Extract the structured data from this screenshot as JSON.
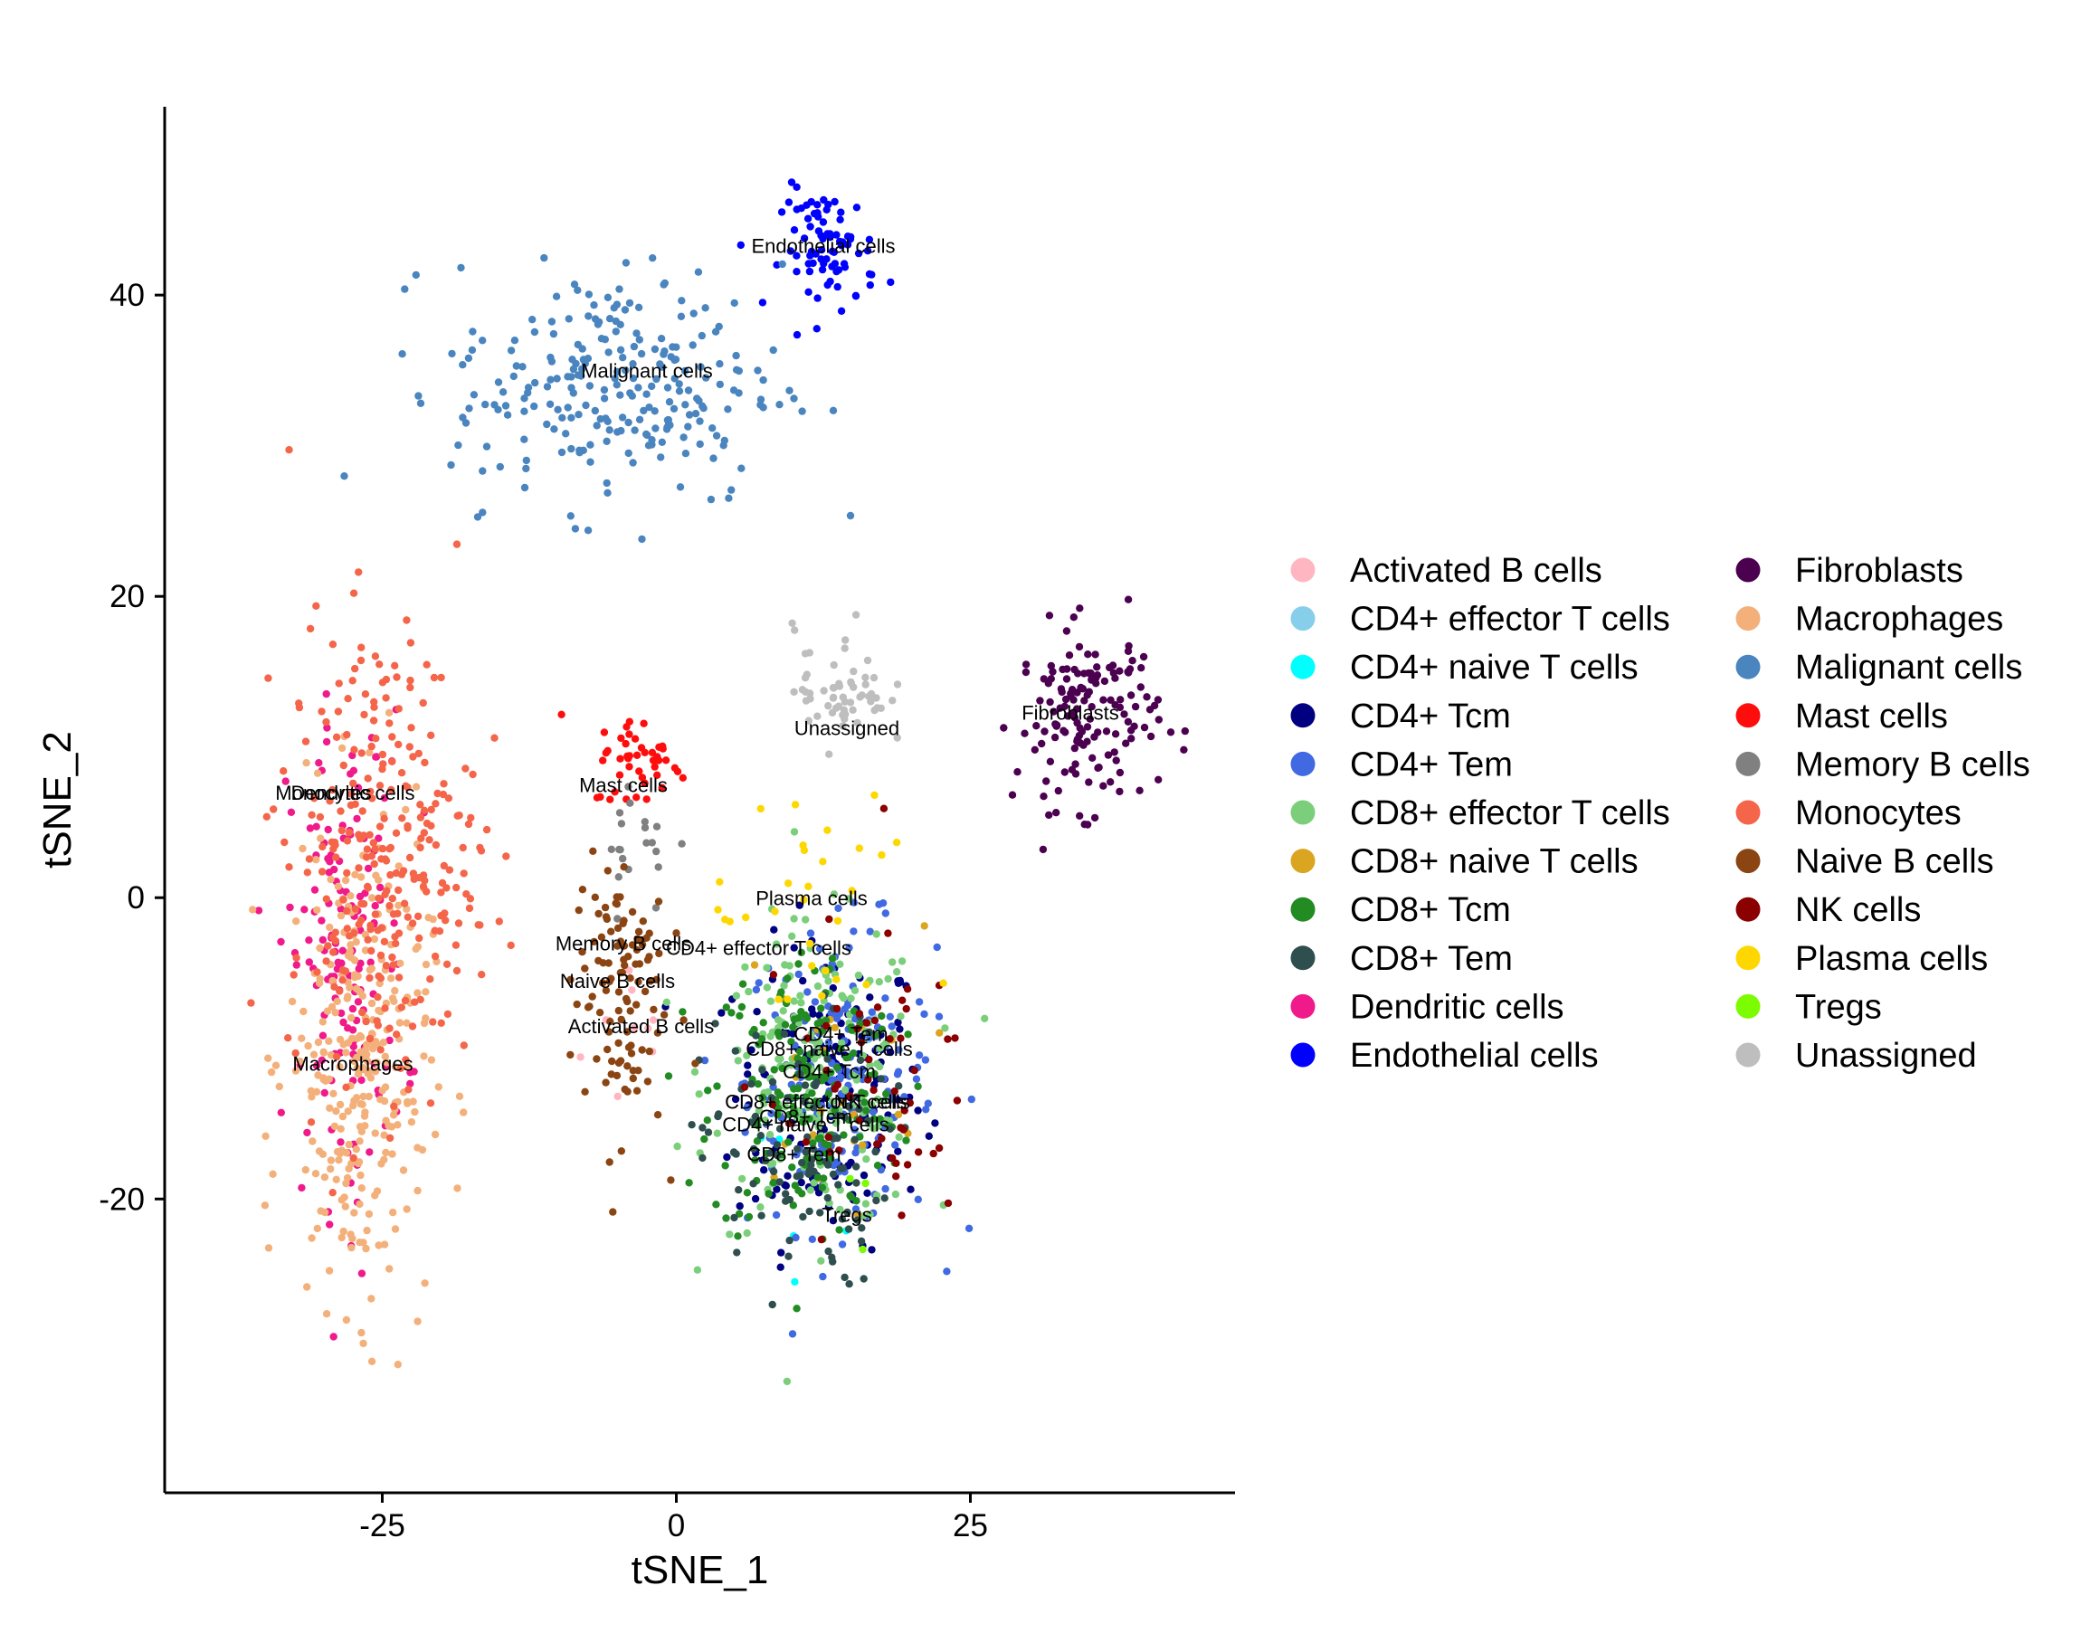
{
  "chart_data": {
    "type": "scatter",
    "title": "",
    "xlabel": "tSNE_1",
    "ylabel": "tSNE_2",
    "xlim": [
      -43.5,
      47.5
    ],
    "ylim": [
      -39.5,
      52.5
    ],
    "xticks": [
      -25,
      0,
      25
    ],
    "yticks": [
      -20,
      0,
      20,
      40
    ],
    "tick_labels_x": [
      "-25",
      "0",
      "25"
    ],
    "tick_labels_y": [
      "-20",
      "0",
      "20",
      "40"
    ],
    "grid": false,
    "legend": "right",
    "legend_columns": 2,
    "series": [
      {
        "name": "Activated B cells",
        "color": "#FFB6C1",
        "approx_count": 10,
        "centroid": [
          -3,
          -9
        ],
        "spread": [
          5,
          6
        ],
        "label": "Activated B cells",
        "label_pos": [
          -3,
          -9
        ]
      },
      {
        "name": "CD4+ effector T cells",
        "color": "#87CEEB",
        "approx_count": 8,
        "centroid": [
          13,
          -13
        ],
        "spread": [
          6,
          8
        ],
        "label": "",
        "label_pos": null
      },
      {
        "name": "CD4+ naive T cells",
        "color": "#00FFFF",
        "approx_count": 6,
        "centroid": [
          11,
          -15
        ],
        "spread": [
          6,
          8
        ],
        "label": "CD4+ naive T cells",
        "label_pos": [
          11,
          -15.5
        ]
      },
      {
        "name": "CD4+ Tcm",
        "color": "#000080",
        "approx_count": 170,
        "centroid": [
          13,
          -13
        ],
        "spread": [
          8,
          10
        ],
        "label": "CD4+ Tcm",
        "label_pos": [
          13,
          -12
        ]
      },
      {
        "name": "CD4+ Tem",
        "color": "#4169E1",
        "approx_count": 170,
        "centroid": [
          14,
          -12
        ],
        "spread": [
          8,
          10
        ],
        "label": "CD4+ Tem",
        "label_pos": [
          14,
          -9.5
        ]
      },
      {
        "name": "CD8+ effector T cells",
        "color": "#7BCF7B",
        "approx_count": 190,
        "centroid": [
          12,
          -12
        ],
        "spread": [
          9,
          10
        ],
        "label": "CD8+ effector T cells",
        "label_pos": [
          12,
          -14
        ]
      },
      {
        "name": "CD8+ naive T cells",
        "color": "#DAA520",
        "approx_count": 25,
        "centroid": [
          13,
          -11
        ],
        "spread": [
          8,
          9
        ],
        "label": "CD8+ naive T cells",
        "label_pos": [
          13,
          -10.5
        ]
      },
      {
        "name": "CD8+ Tcm",
        "color": "#228B22",
        "approx_count": 170,
        "centroid": [
          11,
          -13
        ],
        "spread": [
          8,
          10
        ],
        "label": "CD8+ Tcm",
        "label_pos": [
          11,
          -15
        ]
      },
      {
        "name": "CD8+ Tem",
        "color": "#2F4F4F",
        "approx_count": 110,
        "centroid": [
          10,
          -17
        ],
        "spread": [
          8,
          9
        ],
        "label": "CD8+ Tem",
        "label_pos": [
          10,
          -17.5
        ]
      },
      {
        "name": "Dendritic cells",
        "color": "#F01A8A",
        "approx_count": 150,
        "centroid": [
          -28,
          -4
        ],
        "spread": [
          5,
          16
        ],
        "label": "Dendritic cells",
        "label_pos": [
          -27.5,
          6.5
        ]
      },
      {
        "name": "Endothelial cells",
        "color": "#0000FF",
        "approx_count": 80,
        "centroid": [
          13,
          43
        ],
        "spread": [
          4,
          4
        ],
        "label": "Endothelial cells",
        "label_pos": [
          12.5,
          42.8
        ]
      },
      {
        "name": "Fibroblasts",
        "color": "#4B0150",
        "approx_count": 150,
        "centroid": [
          35,
          12
        ],
        "spread": [
          6,
          6
        ],
        "label": "Fibroblasts",
        "label_pos": [
          33.5,
          11.8
        ]
      },
      {
        "name": "Macrophages",
        "color": "#F4B07A",
        "approx_count": 300,
        "centroid": [
          -27,
          -11
        ],
        "spread": [
          6,
          16
        ],
        "label": "Macrophages",
        "label_pos": [
          -27.5,
          -11.5
        ]
      },
      {
        "name": "Malignant cells",
        "color": "#4A85C0",
        "approx_count": 250,
        "centroid": [
          -5,
          34
        ],
        "spread": [
          14,
          8
        ],
        "label": "Malignant cells",
        "label_pos": [
          -2.5,
          34.5
        ]
      },
      {
        "name": "Mast cells",
        "color": "#FF0D0D",
        "approx_count": 45,
        "centroid": [
          -3,
          9
        ],
        "spread": [
          4,
          3
        ],
        "label": "Mast cells",
        "label_pos": [
          -4.5,
          7
        ]
      },
      {
        "name": "Memory B cells",
        "color": "#808080",
        "approx_count": 20,
        "centroid": [
          -3,
          4
        ],
        "spread": [
          4,
          5
        ],
        "label": "Memory B cells",
        "label_pos": [
          -4.5,
          -3.5
        ]
      },
      {
        "name": "Monocytes",
        "color": "#F5654A",
        "approx_count": 280,
        "centroid": [
          -25,
          3
        ],
        "spread": [
          8,
          15
        ],
        "label": "Monocytes",
        "label_pos": [
          -30,
          6.5
        ]
      },
      {
        "name": "Naive B cells",
        "color": "#8B4513",
        "approx_count": 110,
        "centroid": [
          -5,
          -6
        ],
        "spread": [
          4,
          10
        ],
        "label": "Naive B cells",
        "label_pos": [
          -5,
          -6
        ]
      },
      {
        "name": "NK cells",
        "color": "#8B0000",
        "approx_count": 55,
        "centroid": [
          16,
          -12
        ],
        "spread": [
          9,
          10
        ],
        "label": "NK cells",
        "label_pos": [
          16.5,
          -14
        ]
      },
      {
        "name": "Plasma cells",
        "color": "#FFD700",
        "approx_count": 30,
        "centroid": [
          12,
          -2
        ],
        "spread": [
          9,
          9
        ],
        "label": "Plasma cells",
        "label_pos": [
          11.5,
          -0.5
        ]
      },
      {
        "name": "Tregs",
        "color": "#7CFC00",
        "approx_count": 3,
        "centroid": [
          14,
          -21
        ],
        "spread": [
          5,
          5
        ],
        "label": "Tregs",
        "label_pos": [
          14.5,
          -21.5
        ]
      },
      {
        "name": "Unassigned",
        "color": "#BEBEBE",
        "approx_count": 60,
        "centroid": [
          14,
          14
        ],
        "spread": [
          4,
          4
        ],
        "label": "Unassigned",
        "label_pos": [
          14.5,
          10.8
        ]
      }
    ],
    "extra_cluster_labels": [
      {
        "text": "CD4+ effector T cells",
        "pos": [
          7,
          -3.8
        ]
      }
    ]
  }
}
